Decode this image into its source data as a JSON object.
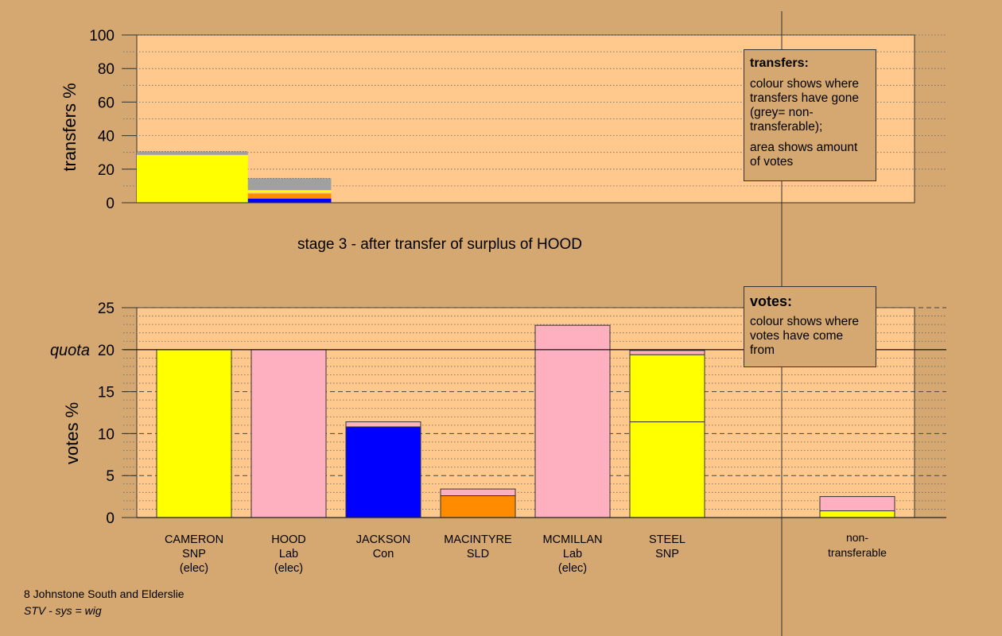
{
  "colors": {
    "background": "#d4a870",
    "plot_bg": "#ffc88c",
    "SNP": "#ffff00",
    "Lab": "#ffb0c0",
    "Con": "#0000ff",
    "SLD": "#ff8c00",
    "nontransferable": "#a0a0a0"
  },
  "chart_data": [
    {
      "type": "bar",
      "title": "stage 3 - after transfer of surplus of HOOD",
      "ylabel": "transfers %",
      "ylim": [
        0,
        100
      ],
      "yticks": [
        "0",
        "20",
        "40",
        "60",
        "80",
        "100"
      ],
      "bars": [
        {
          "x_start": 0,
          "x_end": 1.2,
          "segments": [
            {
              "party": "SNP",
              "value": 28.5
            },
            {
              "party": "nontransferable",
              "value": 2.0
            }
          ]
        },
        {
          "x_start": 1.2,
          "x_end": 2.1,
          "segments": [
            {
              "party": "Con",
              "value": 2.5
            },
            {
              "party": "SLD",
              "value": 3.0
            },
            {
              "party": "Lab",
              "value": 0.5
            },
            {
              "party": "SNP",
              "value": 1.5
            },
            {
              "party": "nontransferable",
              "value": 7.0
            }
          ]
        }
      ],
      "legend": {
        "title": "transfers:",
        "lines": [
          "colour shows where transfers have gone (grey= non-transferable);",
          "area shows amount of votes"
        ]
      }
    },
    {
      "type": "bar",
      "ylabel": "votes %",
      "ylim": [
        0,
        25
      ],
      "yticks": [
        "0",
        "5",
        "10",
        "15",
        "20",
        "25"
      ],
      "quota": {
        "label": "quota",
        "value": 20
      },
      "categories": [
        {
          "name": "CAMERON",
          "party": "SNP",
          "status": "(elec)"
        },
        {
          "name": "HOOD",
          "party": "Lab",
          "status": "(elec)"
        },
        {
          "name": "JACKSON",
          "party": "Con",
          "status": ""
        },
        {
          "name": "MACINTYRE",
          "party": "SLD",
          "status": ""
        },
        {
          "name": "MCMILLAN",
          "party": "Lab",
          "status": "(elec)"
        },
        {
          "name": "STEEL",
          "party": "SNP",
          "status": ""
        }
      ],
      "stacks": [
        [
          {
            "party": "SNP",
            "value": 20.0
          }
        ],
        [
          {
            "party": "Lab",
            "value": 20.0
          }
        ],
        [
          {
            "party": "Con",
            "value": 10.8
          },
          {
            "party": "Lab",
            "value": 0.6
          }
        ],
        [
          {
            "party": "SLD",
            "value": 2.6
          },
          {
            "party": "Lab",
            "value": 0.8
          }
        ],
        [
          {
            "party": "Lab",
            "value": 22.9
          }
        ],
        [
          {
            "party": "SNP",
            "value": 11.4
          },
          {
            "party": "SNP",
            "value": 8.0
          },
          {
            "party": "Lab",
            "value": 0.5
          }
        ]
      ],
      "nontransferable": {
        "label_lines": [
          "non-",
          "transferable"
        ],
        "stack": [
          {
            "party": "SNP",
            "value": 0.8
          },
          {
            "party": "Lab",
            "value": 1.7
          }
        ]
      },
      "legend": {
        "title": "votes:",
        "lines": [
          "colour shows where votes have come from"
        ]
      }
    }
  ],
  "footer": {
    "line1": "8 Johnstone South and Elderslie",
    "line2": "STV - sys = wig"
  }
}
